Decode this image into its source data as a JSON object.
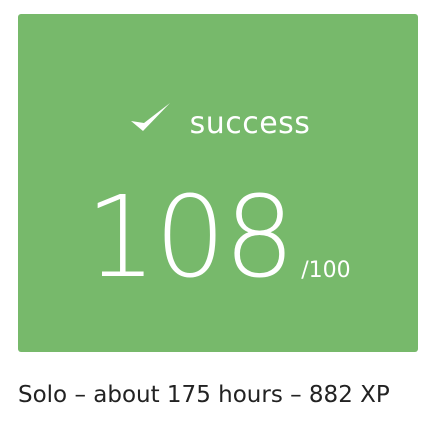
{
  "result": {
    "status_icon": "check-icon",
    "status_text": "success",
    "score": "108",
    "score_max": "/100",
    "caption": "Solo – about 175 hours – 882 XP"
  },
  "colors": {
    "card_bg": "#77b96b",
    "text_light": "#ffffff",
    "caption_text": "#222222"
  }
}
